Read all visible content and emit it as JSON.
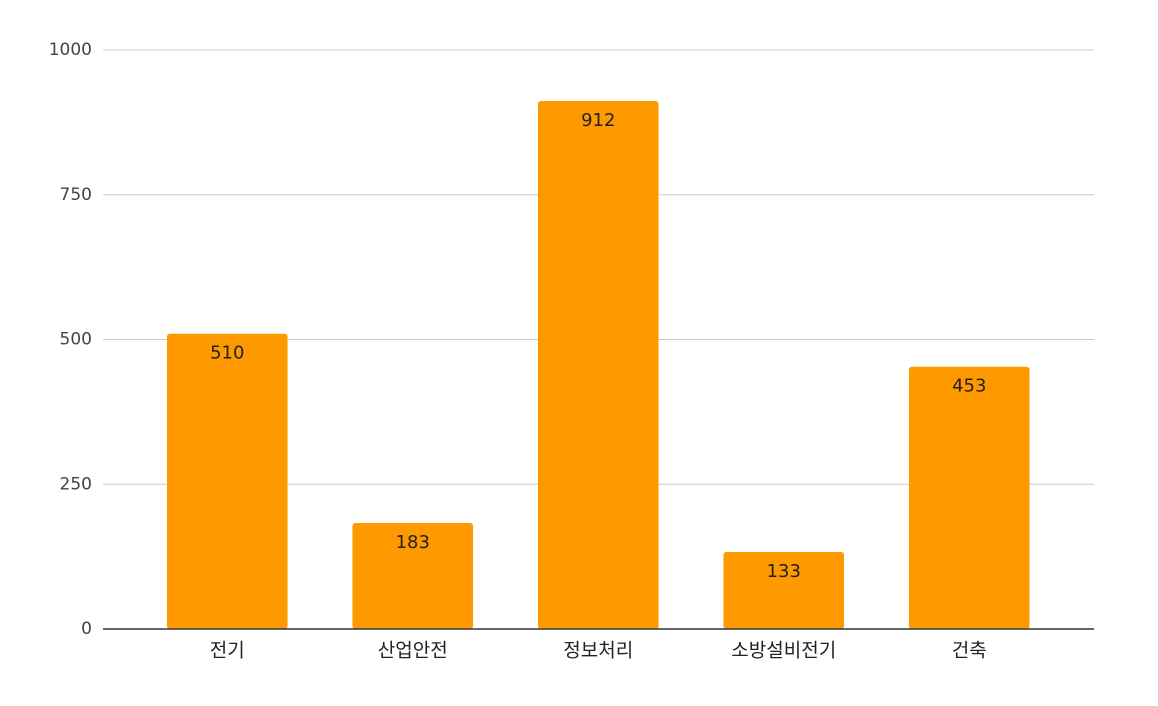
{
  "chart_data": {
    "type": "bar",
    "categories": [
      "전기",
      "산업안전",
      "정보처리",
      "소방설비전기",
      "건축"
    ],
    "values": [
      510,
      183,
      912,
      133,
      453
    ],
    "color": "#ff9900",
    "ylim": [
      0,
      1000
    ],
    "yticks": [
      0,
      250,
      500,
      750,
      1000
    ],
    "grid": true
  }
}
